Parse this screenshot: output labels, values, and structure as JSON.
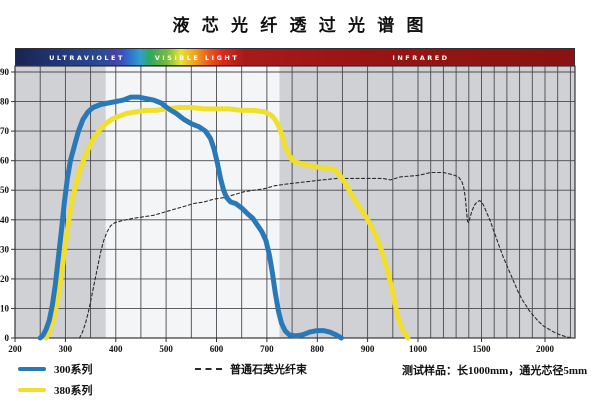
{
  "chart_data": {
    "type": "line",
    "title": "液 芯 光 纤 透 过 光 谱 图",
    "xlabel": "",
    "ylabel": "",
    "x_axis": {
      "min": 200,
      "max": 2236,
      "compression_breakpoint": 1000,
      "gridline_step_below_break": 50,
      "gridline_step_above_break": 100,
      "label_ticks": [
        200,
        300,
        400,
        500,
        600,
        700,
        800,
        900,
        1000,
        1500,
        2000
      ]
    },
    "y_axis": {
      "range": [
        0,
        92
      ],
      "ticks": [
        0,
        10,
        20,
        30,
        40,
        50,
        60,
        70,
        80,
        90
      ]
    },
    "colors": {
      "plot_bg": "#d0d1d5",
      "highlight_band": {
        "from": 380,
        "to": 725,
        "color": "#f4f5f7"
      },
      "grid": "#4a4a4e",
      "border": "#35353a"
    },
    "series": [
      {
        "id": "quartz-fiber",
        "name": "普通石英光纤束",
        "color": "#2b2b2b",
        "width": 1.1,
        "dash": "3 2.5",
        "points": [
          [
            328,
            0
          ],
          [
            334,
            2
          ],
          [
            340,
            5
          ],
          [
            346,
            9
          ],
          [
            352,
            14
          ],
          [
            358,
            19
          ],
          [
            364,
            24
          ],
          [
            370,
            29
          ],
          [
            376,
            33
          ],
          [
            383,
            36
          ],
          [
            390,
            38
          ],
          [
            398,
            39
          ],
          [
            408,
            39.5
          ],
          [
            420,
            40
          ],
          [
            435,
            40.5
          ],
          [
            455,
            41
          ],
          [
            475,
            41.5
          ],
          [
            495,
            42.5
          ],
          [
            515,
            43.5
          ],
          [
            535,
            44.5
          ],
          [
            555,
            45.5
          ],
          [
            575,
            46
          ],
          [
            595,
            47
          ],
          [
            615,
            47.5
          ],
          [
            635,
            48.5
          ],
          [
            655,
            49.5
          ],
          [
            675,
            50
          ],
          [
            695,
            50.5
          ],
          [
            715,
            51.5
          ],
          [
            735,
            52
          ],
          [
            760,
            52.5
          ],
          [
            785,
            53
          ],
          [
            810,
            53.5
          ],
          [
            840,
            54
          ],
          [
            870,
            54
          ],
          [
            900,
            54
          ],
          [
            930,
            54
          ],
          [
            945,
            53.5
          ],
          [
            965,
            54.5
          ],
          [
            1000,
            55
          ],
          [
            1050,
            55.5
          ],
          [
            1100,
            56
          ],
          [
            1150,
            56
          ],
          [
            1200,
            56
          ],
          [
            1250,
            55.5
          ],
          [
            1290,
            55
          ],
          [
            1320,
            54.5
          ],
          [
            1345,
            53
          ],
          [
            1360,
            51
          ],
          [
            1372,
            47.5
          ],
          [
            1382,
            43
          ],
          [
            1390,
            39.5
          ],
          [
            1398,
            39
          ],
          [
            1408,
            40.5
          ],
          [
            1425,
            43
          ],
          [
            1445,
            45
          ],
          [
            1465,
            46
          ],
          [
            1485,
            46.5
          ],
          [
            1500,
            46
          ],
          [
            1515,
            45
          ],
          [
            1530,
            43.5
          ],
          [
            1550,
            41.5
          ],
          [
            1570,
            39.5
          ],
          [
            1590,
            37
          ],
          [
            1615,
            34
          ],
          [
            1640,
            31
          ],
          [
            1670,
            27.5
          ],
          [
            1700,
            24.5
          ],
          [
            1730,
            21.5
          ],
          [
            1760,
            18.5
          ],
          [
            1790,
            15.5
          ],
          [
            1820,
            13
          ],
          [
            1850,
            11
          ],
          [
            1880,
            9
          ],
          [
            1910,
            7.5
          ],
          [
            1950,
            5.5
          ],
          [
            1990,
            4
          ],
          [
            2030,
            3
          ],
          [
            2070,
            2
          ],
          [
            2110,
            1.2
          ],
          [
            2160,
            0.5
          ],
          [
            2210,
            0
          ]
        ]
      },
      {
        "id": "series-380",
        "name": "380系列",
        "color": "#f1df2e",
        "width": 5,
        "dash": "",
        "points": [
          [
            262,
            0
          ],
          [
            268,
            2
          ],
          [
            274,
            5
          ],
          [
            280,
            9
          ],
          [
            287,
            15
          ],
          [
            294,
            24
          ],
          [
            300,
            32
          ],
          [
            307,
            40
          ],
          [
            314,
            47
          ],
          [
            321,
            52
          ],
          [
            329,
            57
          ],
          [
            338,
            61
          ],
          [
            348,
            65
          ],
          [
            358,
            68
          ],
          [
            368,
            70.5
          ],
          [
            380,
            72.5
          ],
          [
            392,
            74
          ],
          [
            406,
            75
          ],
          [
            422,
            76
          ],
          [
            440,
            76.5
          ],
          [
            460,
            77
          ],
          [
            480,
            77
          ],
          [
            500,
            77.5
          ],
          [
            525,
            78
          ],
          [
            550,
            78
          ],
          [
            575,
            77.5
          ],
          [
            600,
            77.5
          ],
          [
            625,
            77.5
          ],
          [
            650,
            77
          ],
          [
            675,
            77
          ],
          [
            695,
            76.5
          ],
          [
            708,
            75.5
          ],
          [
            716,
            74
          ],
          [
            724,
            71.5
          ],
          [
            730,
            68.5
          ],
          [
            736,
            65
          ],
          [
            742,
            62.5
          ],
          [
            749,
            60.5
          ],
          [
            757,
            59.5
          ],
          [
            768,
            59
          ],
          [
            780,
            58.5
          ],
          [
            795,
            58
          ],
          [
            810,
            57.5
          ],
          [
            822,
            57.5
          ],
          [
            835,
            57
          ],
          [
            845,
            55
          ],
          [
            855,
            52.5
          ],
          [
            865,
            49.5
          ],
          [
            875,
            46.5
          ],
          [
            885,
            44
          ],
          [
            895,
            41.5
          ],
          [
            905,
            38.5
          ],
          [
            915,
            35
          ],
          [
            925,
            31
          ],
          [
            932,
            27
          ],
          [
            940,
            22.5
          ],
          [
            948,
            17
          ],
          [
            955,
            11
          ],
          [
            962,
            6
          ],
          [
            970,
            2.5
          ],
          [
            980,
            0
          ]
        ]
      },
      {
        "id": "series-300",
        "name": "300系列",
        "color": "#2979b8",
        "width": 5,
        "dash": "",
        "points": [
          [
            250,
            0
          ],
          [
            256,
            1
          ],
          [
            262,
            3
          ],
          [
            268,
            6
          ],
          [
            274,
            11
          ],
          [
            280,
            18
          ],
          [
            286,
            27
          ],
          [
            292,
            36
          ],
          [
            298,
            46
          ],
          [
            304,
            54
          ],
          [
            310,
            60
          ],
          [
            318,
            65
          ],
          [
            326,
            70
          ],
          [
            335,
            74
          ],
          [
            345,
            76.5
          ],
          [
            355,
            78
          ],
          [
            370,
            79
          ],
          [
            385,
            79.5
          ],
          [
            400,
            80
          ],
          [
            415,
            80.5
          ],
          [
            430,
            81.5
          ],
          [
            445,
            81.5
          ],
          [
            460,
            81
          ],
          [
            475,
            80.5
          ],
          [
            490,
            79.5
          ],
          [
            505,
            77.5
          ],
          [
            520,
            76
          ],
          [
            535,
            74
          ],
          [
            550,
            72.5
          ],
          [
            565,
            71.5
          ],
          [
            578,
            70
          ],
          [
            588,
            67.5
          ],
          [
            595,
            64
          ],
          [
            602,
            59
          ],
          [
            608,
            54
          ],
          [
            614,
            50
          ],
          [
            620,
            47.5
          ],
          [
            628,
            46
          ],
          [
            638,
            45.5
          ],
          [
            650,
            44
          ],
          [
            662,
            42
          ],
          [
            672,
            40.5
          ],
          [
            680,
            38.5
          ],
          [
            690,
            36
          ],
          [
            698,
            33
          ],
          [
            705,
            28
          ],
          [
            711,
            22
          ],
          [
            717,
            15
          ],
          [
            723,
            9
          ],
          [
            729,
            5
          ],
          [
            736,
            2.5
          ],
          [
            745,
            1
          ],
          [
            757,
            0.7
          ],
          [
            770,
            1
          ],
          [
            785,
            2
          ],
          [
            800,
            2.5
          ],
          [
            812,
            2.5
          ],
          [
            825,
            2
          ],
          [
            838,
            1
          ],
          [
            848,
            0
          ]
        ]
      }
    ]
  },
  "spectrum_bar": {
    "labels": [
      {
        "text": "ULTRAVIOLET"
      },
      {
        "text": "VISIBLE LIGHT"
      },
      {
        "text": "INFRARED"
      }
    ],
    "gradient_stops": [
      [
        0,
        "#19244f"
      ],
      [
        6,
        "#203270"
      ],
      [
        12,
        "#28428a"
      ],
      [
        16,
        "#2c4b97"
      ],
      [
        17.5,
        "#4b3f9f"
      ],
      [
        19,
        "#3a50c0"
      ],
      [
        20.5,
        "#2f74d0"
      ],
      [
        22.3,
        "#30a0c8"
      ],
      [
        24,
        "#2fa75e"
      ],
      [
        27,
        "#72bd38"
      ],
      [
        29.5,
        "#e8e238"
      ],
      [
        32,
        "#f2a31f"
      ],
      [
        34.5,
        "#ec5a20"
      ],
      [
        37,
        "#d82a1c"
      ],
      [
        41,
        "#a81a1a"
      ],
      [
        60,
        "#9a1515"
      ],
      [
        100,
        "#8a1212"
      ]
    ]
  },
  "legend": {
    "items": [
      {
        "label": "300系列",
        "swatch": "solid",
        "color": "#2979b8"
      },
      {
        "label": "普通石英光纤束",
        "swatch": "dashed",
        "color": "#2b2b2b"
      },
      {
        "label": "380系列",
        "swatch": "solid",
        "color": "#f1df2e"
      }
    ]
  },
  "note": "测试样品：长1000mm，通光芯径5mm"
}
